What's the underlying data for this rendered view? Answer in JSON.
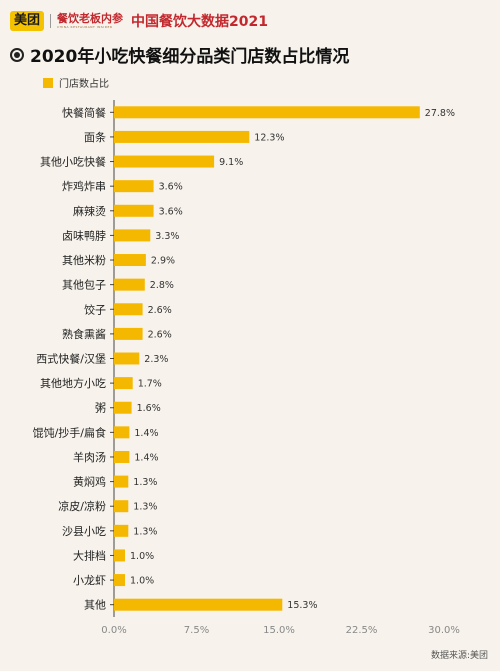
{
  "header": {
    "brand": "美团",
    "partner": "餐饮老板内参",
    "partner_sub": "CHINA RESTAURANT INSIDER",
    "report": "中国餐饮大数据2021"
  },
  "source": "数据来源:美团",
  "chart_data": {
    "type": "bar",
    "orientation": "horizontal",
    "title": "2020年小吃快餐细分品类门店数占比情况",
    "xlabel": "",
    "ylabel": "",
    "legend": {
      "entries": [
        "门店数占比"
      ],
      "placement": "top-left"
    },
    "categories": [
      "快餐简餐",
      "面条",
      "其他小吃快餐",
      "炸鸡炸串",
      "麻辣烫",
      "卤味鸭脖",
      "其他米粉",
      "其他包子",
      "饺子",
      "熟食熏酱",
      "西式快餐/汉堡",
      "其他地方小吃",
      "粥",
      "馄饨/抄手/扁食",
      "羊肉汤",
      "黄焖鸡",
      "凉皮/凉粉",
      "沙县小吃",
      "大排档",
      "小龙虾",
      "其他"
    ],
    "series": [
      {
        "name": "门店数占比",
        "values": [
          27.8,
          12.3,
          9.1,
          3.6,
          3.6,
          3.3,
          2.9,
          2.8,
          2.6,
          2.6,
          2.3,
          1.7,
          1.6,
          1.4,
          1.4,
          1.3,
          1.3,
          1.3,
          1.0,
          1.0,
          15.3
        ],
        "value_labels": [
          "27.8%",
          "12.3%",
          "9.1%",
          "3.6%",
          "3.6%",
          "3.3%",
          "2.9%",
          "2.8%",
          "2.6%",
          "2.6%",
          "2.3%",
          "1.7%",
          "1.6%",
          "1.4%",
          "1.4%",
          "1.3%",
          "1.3%",
          "1.3%",
          "1.0%",
          "1.0%",
          "15.3%"
        ]
      }
    ],
    "xlim": [
      0,
      30
    ],
    "xticks": [
      0,
      7.5,
      15,
      22.5,
      30
    ],
    "xtick_labels": [
      "0.0%",
      "7.5%",
      "15.0%",
      "22.5%",
      "30.0%"
    ],
    "grid": false,
    "colors": {
      "bar": "#f5b800",
      "axis": "#444444",
      "tick_label": "#888888"
    }
  }
}
